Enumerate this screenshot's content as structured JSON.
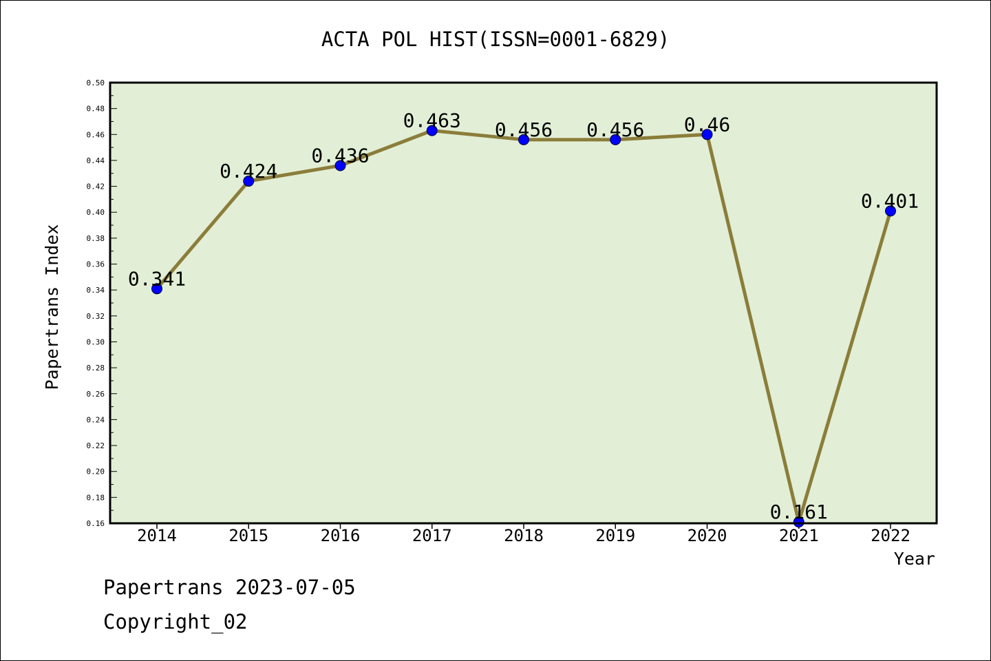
{
  "chart_data": {
    "type": "line",
    "title": "ACTA POL HIST(ISSN=0001-6829)",
    "xlabel": "Year",
    "ylabel": "Papertrans Index",
    "categories": [
      "2014",
      "2015",
      "2016",
      "2017",
      "2018",
      "2019",
      "2020",
      "2021",
      "2022"
    ],
    "series": [
      {
        "name": "Papertrans Index",
        "values": [
          0.341,
          0.424,
          0.436,
          0.463,
          0.456,
          0.456,
          0.46,
          0.161,
          0.401
        ],
        "labels": [
          "0.341",
          "0.424",
          "0.436",
          "0.463",
          "0.456",
          "0.456",
          "0.46",
          "0.161",
          "0.401"
        ]
      }
    ],
    "ylim": [
      0.16,
      0.5
    ],
    "yticks": [
      "0.16",
      "0.18",
      "0.20",
      "0.22",
      "0.24",
      "0.26",
      "0.28",
      "0.30",
      "0.32",
      "0.34",
      "0.36",
      "0.38",
      "0.40",
      "0.42",
      "0.44",
      "0.46",
      "0.48",
      "0.50"
    ],
    "grid": false,
    "colors": {
      "plot_background": "#e2efd6",
      "line": "#8b7d3a",
      "marker": "#0000ff"
    }
  },
  "footer": {
    "date_line": "Papertrans 2023-07-05",
    "copyright_line": "Copyright_02"
  }
}
